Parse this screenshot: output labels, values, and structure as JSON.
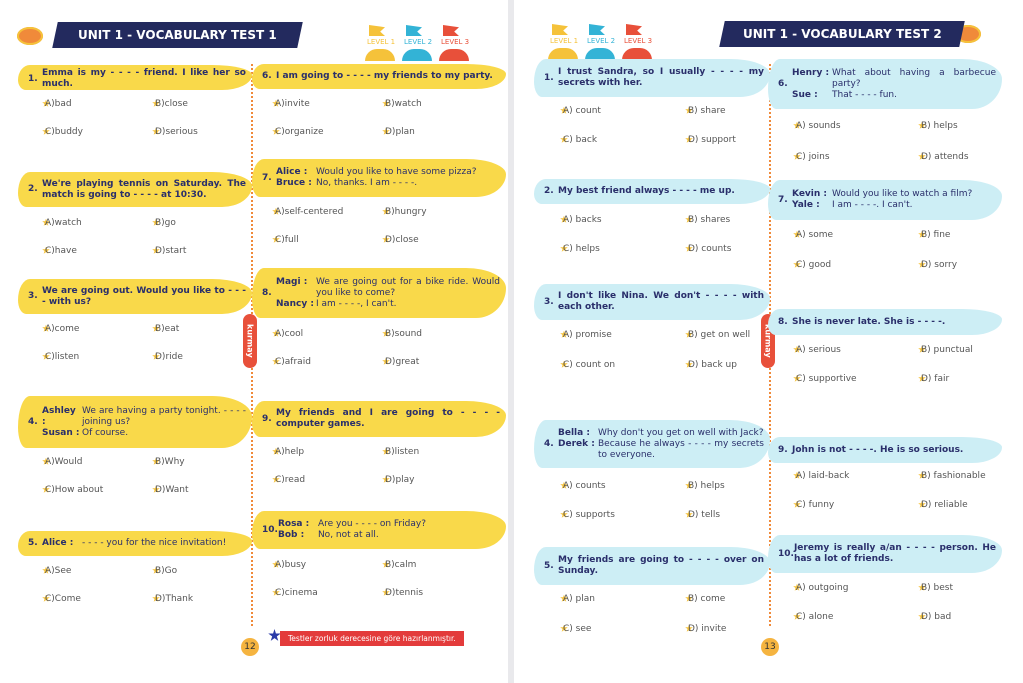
{
  "brand": "kurmay",
  "pages": [
    {
      "title": "UNIT 1 - VOCABULARY TEST 1",
      "levels": [
        "LEVEL 1",
        "LEVEL 2",
        "LEVEL 3"
      ],
      "page_number": "12",
      "footer": "Testler zorluk derecesine göre hazırlanmıştır.",
      "questions": [
        {
          "number": "1.",
          "text": "Emma is my - - - - friend. I like her so much.",
          "options": [
            "A)bad",
            "B)close",
            "C)buddy",
            "D)serious"
          ]
        },
        {
          "number": "2.",
          "text": "We're playing tennis on Saturday. The match is going to - - - - at 10:30.",
          "options": [
            "A)watch",
            "B)go",
            "C)have",
            "D)start"
          ]
        },
        {
          "number": "3.",
          "text": "We are going out. Would you like to - - - - with us?",
          "options": [
            "A)come",
            "B)eat",
            "C)listen",
            "D)ride"
          ]
        },
        {
          "number": "4.",
          "dialogue": [
            {
              "speaker": "Ashley :",
              "text": "We are having a party tonight. - - - - joining us?"
            },
            {
              "speaker": "Susan :",
              "text": "Of course."
            }
          ],
          "options": [
            "A)Would",
            "B)Why",
            "C)How about",
            "D)Want"
          ]
        },
        {
          "number": "5.",
          "dialogue": [
            {
              "speaker": "Alice :",
              "text": "- - - - you for the nice invitation!"
            }
          ],
          "options": [
            "A)See",
            "B)Go",
            "C)Come",
            "D)Thank"
          ]
        },
        {
          "number": "6.",
          "text": "I am going to - - - - my friends to my party.",
          "options": [
            "A)invite",
            "B)watch",
            "C)organize",
            "D)plan"
          ]
        },
        {
          "number": "7.",
          "dialogue": [
            {
              "speaker": "Alice :",
              "text": "Would you like to have some pizza?"
            },
            {
              "speaker": "Bruce :",
              "text": "No, thanks. I am - - - -."
            }
          ],
          "options": [
            "A)self-centered",
            "B)hungry",
            "C)full",
            "D)close"
          ]
        },
        {
          "number": "8.",
          "dialogue": [
            {
              "speaker": "Magi :",
              "text": "We are going out for a bike ride. Would you like to come?"
            },
            {
              "speaker": "Nancy :",
              "text": "I am - - - -, I can't."
            }
          ],
          "options": [
            "A)cool",
            "B)sound",
            "C)afraid",
            "D)great"
          ]
        },
        {
          "number": "9.",
          "text": "My friends and I are going to - - - - computer games.",
          "options": [
            "A)help",
            "B)listen",
            "C)read",
            "D)play"
          ]
        },
        {
          "number": "10.",
          "dialogue": [
            {
              "speaker": "Rosa :",
              "text": "Are you - - - - on Friday?"
            },
            {
              "speaker": "Bob :",
              "text": "No, not at all."
            }
          ],
          "options": [
            "A)busy",
            "B)calm",
            "C)cinema",
            "D)tennis"
          ]
        }
      ]
    },
    {
      "title": "UNIT 1 - VOCABULARY TEST 2",
      "levels": [
        "LEVEL 1",
        "LEVEL 2",
        "LEVEL 3"
      ],
      "page_number": "13",
      "questions": [
        {
          "number": "1.",
          "text": "I trust Sandra, so I usually - - - - my secrets with her.",
          "options": [
            "A) count",
            "B) share",
            "C) back",
            "D) support"
          ]
        },
        {
          "number": "2.",
          "text": "My best friend always - - - - me up.",
          "options": [
            "A) backs",
            "B) shares",
            "C) helps",
            "D) counts"
          ]
        },
        {
          "number": "3.",
          "text": "I don't like Nina. We don't - - - - with each other.",
          "options": [
            "A) promise",
            "B) get on well",
            "C) count on",
            "D) back up"
          ]
        },
        {
          "number": "4.",
          "dialogue": [
            {
              "speaker": "Bella :",
              "text": "Why don't you get on well with Jack?"
            },
            {
              "speaker": "Derek :",
              "text": "Because he always - - - - my secrets to everyone."
            }
          ],
          "options": [
            "A) counts",
            "B) helps",
            "C) supports",
            "D) tells"
          ]
        },
        {
          "number": "5.",
          "text": "My friends are going to - - - - over on Sunday.",
          "options": [
            "A) plan",
            "B) come",
            "C) see",
            "D) invite"
          ]
        },
        {
          "number": "6.",
          "dialogue": [
            {
              "speaker": "Henry :",
              "text": "What about having a barbecue party?"
            },
            {
              "speaker": "Sue :",
              "text": "That - - - - fun."
            }
          ],
          "options": [
            "A) sounds",
            "B) helps",
            "C) joins",
            "D) attends"
          ]
        },
        {
          "number": "7.",
          "dialogue": [
            {
              "speaker": "Kevin :",
              "text": "Would you like to watch a film?"
            },
            {
              "speaker": "Yale :",
              "text": "I am - - - -. I can't."
            }
          ],
          "options": [
            "A) some",
            "B) fine",
            "C) good",
            "D) sorry"
          ]
        },
        {
          "number": "8.",
          "text": "She is never late. She is - - - -.",
          "options": [
            "A) serious",
            "B) punctual",
            "C) supportive",
            "D) fair"
          ]
        },
        {
          "number": "9.",
          "text": "John is not - - - -. He is so serious.",
          "options": [
            "A) laid-back",
            "B) fashionable",
            "C) funny",
            "D) reliable"
          ]
        },
        {
          "number": "10.",
          "text": "Jeremy is really a/an - - - - person. He has a lot of friends.",
          "options": [
            "A) outgoing",
            "B) best",
            "C) alone",
            "D) bad"
          ]
        }
      ]
    }
  ]
}
